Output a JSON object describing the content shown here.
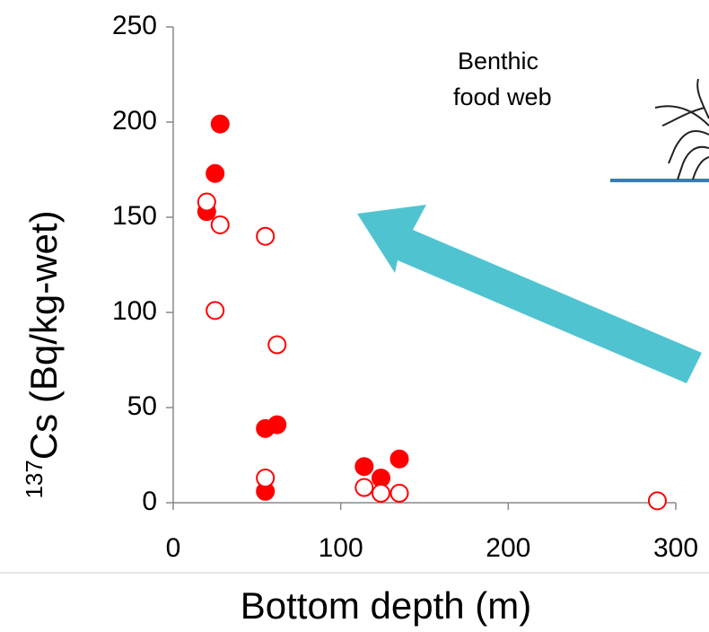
{
  "chart_data": {
    "type": "scatter",
    "x_label": "Bottom depth (m)",
    "y_label_sup": "137",
    "y_label": "Cs  (Bq/kg-wet)",
    "annotation": [
      "Benthic",
      "food web"
    ],
    "xlim": [
      0,
      300
    ],
    "xticks": [
      0,
      100,
      200,
      300
    ],
    "ylim": [
      0,
      250
    ],
    "yticks": [
      0,
      50,
      100,
      150,
      200,
      250
    ],
    "series": [
      {
        "color": "#ff0000",
        "filled": true,
        "x": [
          28,
          25,
          20,
          55,
          62,
          55,
          114,
          124,
          135
        ],
        "values": [
          199,
          173,
          153,
          39,
          41,
          6,
          19,
          13,
          23
        ]
      },
      {
        "color": "#ff0000",
        "filled": false,
        "x": [
          20,
          28,
          55,
          25,
          62,
          55,
          114,
          124,
          135,
          289
        ],
        "values": [
          158,
          146,
          140,
          101,
          83,
          13,
          8,
          5,
          5,
          1
        ]
      }
    ]
  }
}
